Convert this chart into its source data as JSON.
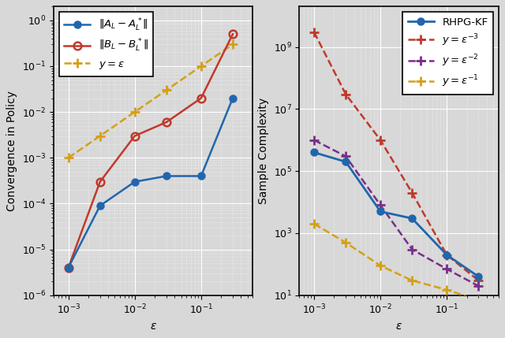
{
  "left": {
    "eps_AL": [
      0.001,
      0.003,
      0.01,
      0.03,
      0.1,
      0.3
    ],
    "AL": [
      4e-06,
      9e-05,
      0.0003,
      0.0004,
      0.0004,
      0.02
    ],
    "eps_BL": [
      0.001,
      0.003,
      0.01,
      0.03,
      0.1,
      0.3
    ],
    "BL": [
      4e-06,
      0.0003,
      0.003,
      0.006,
      0.02,
      0.5
    ],
    "eps_ref": [
      0.001,
      0.003,
      0.01,
      0.03,
      0.1,
      0.3
    ],
    "ref": [
      0.001,
      0.003,
      0.01,
      0.03,
      0.1,
      0.3
    ],
    "color_AL": "#2166ac",
    "color_BL": "#c0392b",
    "color_ref": "#d4a017",
    "ylabel": "Convergence in Policy",
    "xlabel": "$\\epsilon$",
    "xlim": [
      0.0006,
      0.6
    ],
    "ylim": [
      1e-06,
      2.0
    ],
    "label_AL": "$\\|A_L - A_L^*\\|$",
    "label_BL": "$\\|B_L - B_L^*\\|$",
    "label_ref": "$y = \\epsilon$"
  },
  "right": {
    "eps_rhpg": [
      0.001,
      0.003,
      0.01,
      0.03,
      0.1,
      0.3
    ],
    "rhpg": [
      400000.0,
      200000.0,
      5000.0,
      3000.0,
      200.0,
      40.0
    ],
    "eps_em3": [
      0.001,
      0.003,
      0.01,
      0.03,
      0.1,
      0.3
    ],
    "em3": [
      3000000000.0,
      30000000.0,
      1000000.0,
      20000.0,
      200.0,
      30.0
    ],
    "eps_em2": [
      0.001,
      0.003,
      0.01,
      0.03,
      0.1,
      0.3
    ],
    "em2": [
      1000000.0,
      300000.0,
      8000.0,
      300.0,
      70.0,
      20.0
    ],
    "eps_em1": [
      0.001,
      0.003,
      0.01,
      0.03,
      0.1,
      0.3
    ],
    "em1": [
      2000.0,
      500.0,
      90.0,
      30.0,
      15.0,
      7
    ],
    "color_rhpg": "#2166ac",
    "color_em3": "#c0392b",
    "color_em2": "#7b2d8b",
    "color_em1": "#d4a017",
    "ylabel": "Sample Complexity",
    "xlabel": "$\\epsilon$",
    "xlim": [
      0.0006,
      0.6
    ],
    "ylim": [
      10.0,
      20000000000.0
    ],
    "label_rhpg": "RHPG-KF",
    "label_em3": "$y = \\epsilon^{-3}$",
    "label_em2": "$y = \\epsilon^{-2}$",
    "label_em1": "$y = \\epsilon^{-1}$"
  },
  "bg_color": "#d8d8d8",
  "grid_major_color": "#ffffff",
  "grid_minor_color": "#e8e8e8",
  "label_fontsize": 10,
  "tick_fontsize": 9,
  "legend_fontsize": 9.5
}
